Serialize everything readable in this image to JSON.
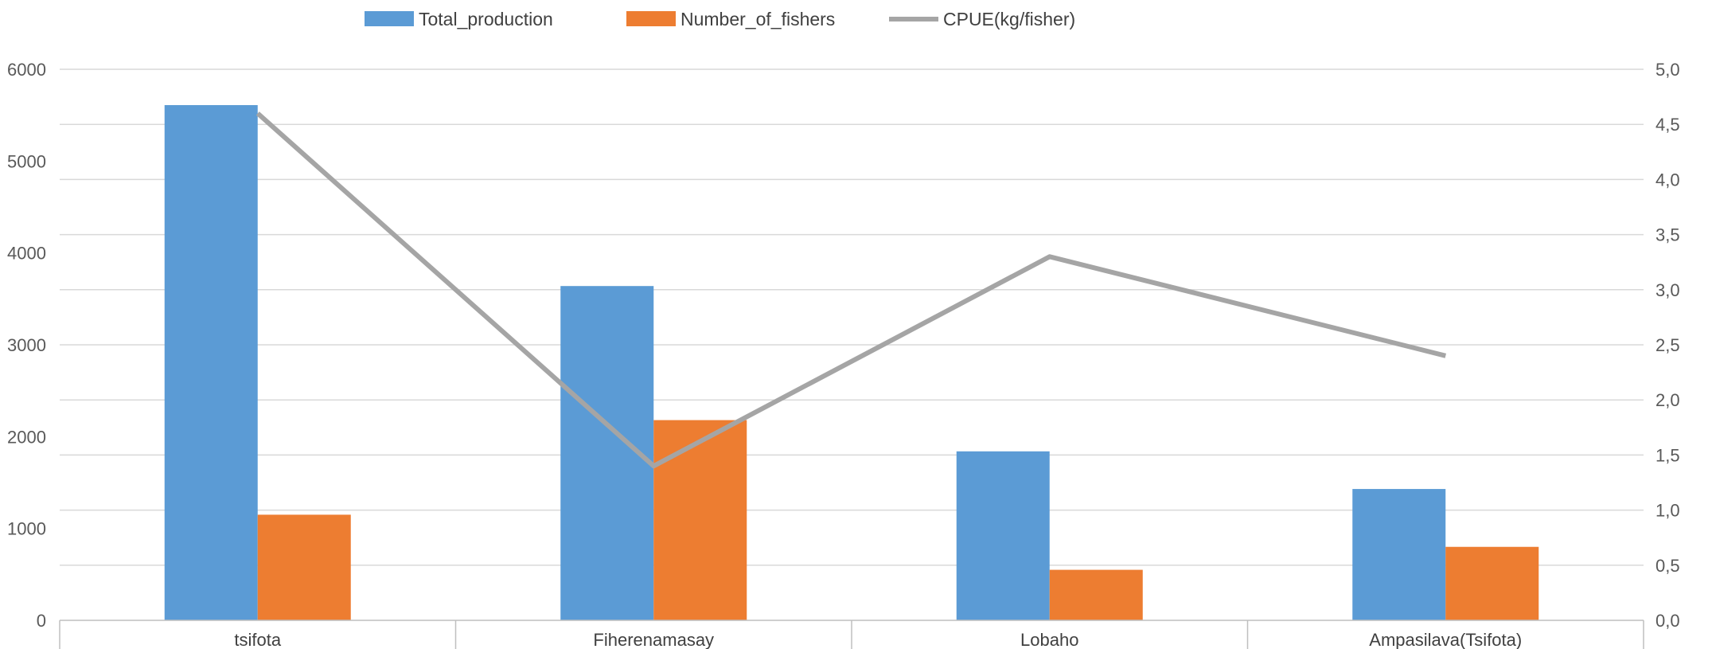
{
  "chart_data": {
    "type": "bar",
    "categories": [
      "tsifota",
      "Fiherenamasay",
      "Lobaho",
      "Ampasilava(Tsifota)"
    ],
    "series": [
      {
        "name": "Total_production",
        "type": "bar",
        "axis": "left",
        "color": "#5B9BD5",
        "values": [
          5610,
          3640,
          1840,
          1430
        ]
      },
      {
        "name": "Number_of_fishers",
        "type": "bar",
        "axis": "left",
        "color": "#ED7D31",
        "values": [
          1150,
          2180,
          550,
          800
        ]
      },
      {
        "name": "CPUE(kg/fisher)",
        "type": "line",
        "axis": "right",
        "color": "#A5A5A5",
        "values": [
          4.6,
          1.4,
          3.3,
          2.4
        ]
      }
    ],
    "y_left": {
      "min": 0,
      "max": 6000,
      "ticks": [
        "0",
        "1000",
        "2000",
        "3000",
        "4000",
        "5000",
        "6000"
      ]
    },
    "y_right": {
      "min": 0,
      "max": 5,
      "ticks": [
        "0,0",
        "0,5",
        "1,0",
        "1,5",
        "2,0",
        "2,5",
        "3,0",
        "3,5",
        "4,0",
        "4,5",
        "5,0"
      ]
    },
    "legend": {
      "position": "top",
      "items": [
        "Total_production",
        "Number_of_fishers",
        "CPUE(kg/fisher)"
      ]
    },
    "grid": true,
    "gridline_color": "#D9D9D9"
  }
}
